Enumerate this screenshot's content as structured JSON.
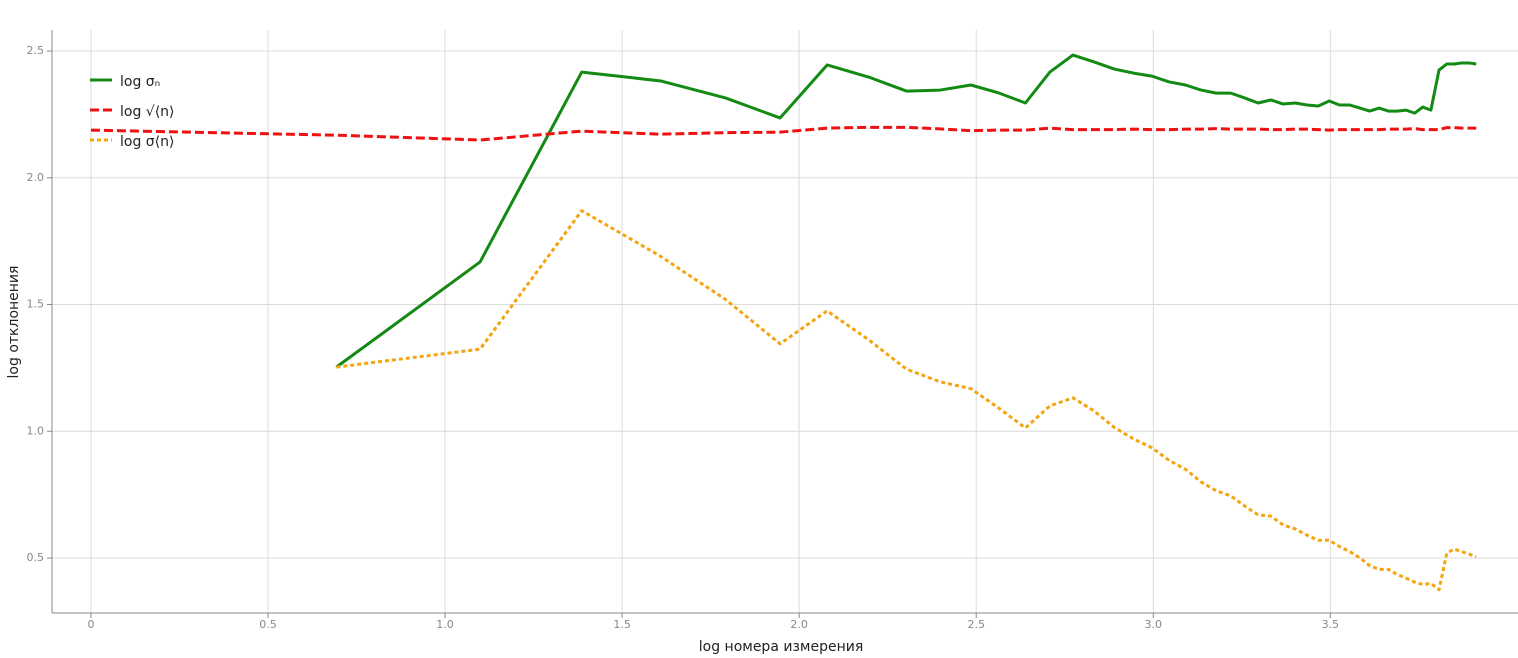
{
  "chart_data": {
    "type": "line",
    "x_label": "log номера измерения",
    "y_label": "log отклонения",
    "x": [
      0,
      0.693,
      1.099,
      1.386,
      1.609,
      1.792,
      1.946,
      2.079,
      2.197,
      2.303,
      2.398,
      2.485,
      2.565,
      2.639,
      2.708,
      2.773,
      2.833,
      2.89,
      2.944,
      2.996,
      3.045,
      3.091,
      3.135,
      3.178,
      3.219,
      3.258,
      3.296,
      3.332,
      3.367,
      3.401,
      3.434,
      3.466,
      3.497,
      3.526,
      3.555,
      3.584,
      3.611,
      3.638,
      3.664,
      3.689,
      3.714,
      3.738,
      3.761,
      3.784,
      3.807,
      3.829,
      3.85,
      3.871,
      3.892,
      3.912
    ],
    "series": [
      {
        "name": "log σₙ",
        "color": "#138a13",
        "dash": "solid",
        "values": [
          null,
          1.253,
          1.668,
          2.417,
          2.382,
          2.315,
          2.236,
          2.445,
          2.397,
          2.342,
          2.346,
          2.366,
          2.334,
          2.295,
          2.417,
          2.484,
          2.457,
          2.429,
          2.413,
          2.401,
          2.378,
          2.366,
          2.346,
          2.334,
          2.334,
          2.315,
          2.295,
          2.307,
          2.291,
          2.295,
          2.287,
          2.283,
          2.303,
          2.287,
          2.287,
          2.275,
          2.263,
          2.275,
          2.263,
          2.263,
          2.267,
          2.255,
          2.279,
          2.267,
          2.425,
          2.449,
          2.449,
          2.453,
          2.453,
          2.449
        ]
      },
      {
        "name": "log √⟨n⟩",
        "color": "#ee1111",
        "dash": "dashed",
        "values": [
          2.188,
          2.168,
          2.149,
          2.184,
          2.172,
          2.178,
          2.18,
          2.196,
          2.199,
          2.199,
          2.193,
          2.186,
          2.188,
          2.188,
          2.196,
          2.19,
          2.19,
          2.19,
          2.192,
          2.19,
          2.19,
          2.192,
          2.192,
          2.194,
          2.192,
          2.192,
          2.192,
          2.19,
          2.19,
          2.192,
          2.192,
          2.19,
          2.188,
          2.19,
          2.19,
          2.19,
          2.19,
          2.19,
          2.192,
          2.192,
          2.192,
          2.194,
          2.19,
          2.19,
          2.19,
          2.198,
          2.198,
          2.196,
          2.196,
          2.196
        ]
      },
      {
        "name": "log σ⟨n⟩",
        "color": "#f5a511",
        "dash": "dotted",
        "values": [
          null,
          1.253,
          1.324,
          1.87,
          1.69,
          1.52,
          1.345,
          1.475,
          1.36,
          1.245,
          1.195,
          1.168,
          1.09,
          1.013,
          1.1,
          1.132,
          1.08,
          1.015,
          0.97,
          0.935,
          0.885,
          0.85,
          0.8,
          0.765,
          0.745,
          0.705,
          0.67,
          0.665,
          0.63,
          0.615,
          0.59,
          0.57,
          0.57,
          0.545,
          0.525,
          0.5,
          0.47,
          0.455,
          0.455,
          0.435,
          0.42,
          0.405,
          0.395,
          0.4,
          0.375,
          0.52,
          0.535,
          0.525,
          0.515,
          0.505
        ]
      }
    ],
    "xlim": [
      -0.11,
      4.03
    ],
    "ylim": [
      0.283,
      2.583
    ],
    "xticks": [
      0,
      0.5,
      {
        "value": 1,
        "label": "1.0"
      },
      1.5,
      {
        "value": 2,
        "label": "2.0"
      },
      2.5,
      {
        "value": 3,
        "label": "3.0"
      },
      3.5
    ],
    "yticks": [
      0.5,
      {
        "value": 1,
        "label": "1.0"
      },
      1.5,
      {
        "value": 2,
        "label": "2.0"
      },
      2.5
    ],
    "grid": true,
    "legend": "top-left"
  }
}
